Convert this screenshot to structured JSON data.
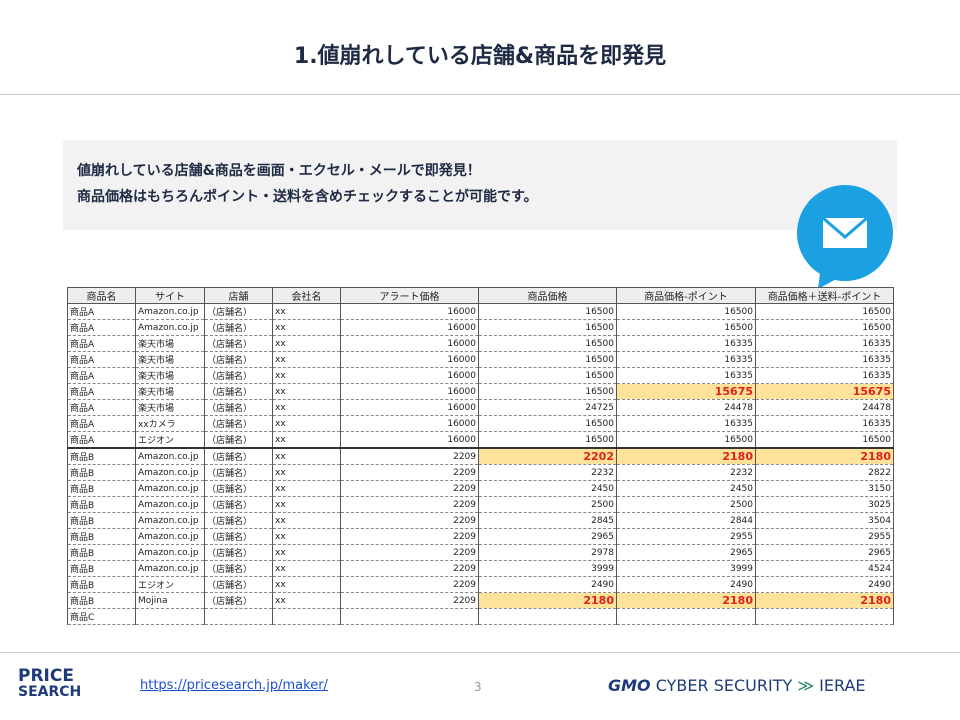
{
  "header": {
    "title": "1.値崩れしている店舗&商品を即発見"
  },
  "callout": {
    "lines": [
      "値崩れしている店舗&商品を画面・エクセル・メールで即発見！",
      "商品価格はもちろんポイント・送料を含めチェックすることが可能です。"
    ]
  },
  "table": {
    "columns": [
      "商品名",
      "サイト",
      "店舗",
      "会社名",
      "アラート価格",
      "商品価格",
      "商品価格-ポイント",
      "商品価格＋送料-ポイント"
    ],
    "rows": [
      [
        "商品A",
        "Amazon.co.jp",
        "（店舗名）",
        "xx",
        16000,
        16500,
        16500,
        16500
      ],
      [
        "商品A",
        "Amazon.co.jp",
        "（店舗名）",
        "xx",
        16000,
        16500,
        16500,
        16500
      ],
      [
        "商品A",
        "楽天市場",
        "（店舗名）",
        "xx",
        16000,
        16500,
        16335,
        16335
      ],
      [
        "商品A",
        "楽天市場",
        "（店舗名）",
        "xx",
        16000,
        16500,
        16335,
        16335
      ],
      [
        "商品A",
        "楽天市場",
        "（店舗名）",
        "xx",
        16000,
        16500,
        16335,
        16335
      ],
      [
        "商品A",
        "楽天市場",
        "（店舗名）",
        "xx",
        16000,
        16500,
        15675,
        15675
      ],
      [
        "商品A",
        "楽天市場",
        "（店舗名）",
        "xx",
        16000,
        24725,
        24478,
        24478
      ],
      [
        "商品A",
        "xxカメラ",
        "（店舗名）",
        "xx",
        16000,
        16500,
        16335,
        16335
      ],
      [
        "商品A",
        "エジオン",
        "（店舗名）",
        "xx",
        16000,
        16500,
        16500,
        16500
      ],
      [
        "商品B",
        "Amazon.co.jp",
        "（店舗名）",
        "xx",
        2209,
        2202,
        2180,
        2180
      ],
      [
        "商品B",
        "Amazon.co.jp",
        "（店舗名）",
        "xx",
        2209,
        2232,
        2232,
        2822
      ],
      [
        "商品B",
        "Amazon.co.jp",
        "（店舗名）",
        "xx",
        2209,
        2450,
        2450,
        3150
      ],
      [
        "商品B",
        "Amazon.co.jp",
        "（店舗名）",
        "xx",
        2209,
        2500,
        2500,
        3025
      ],
      [
        "商品B",
        "Amazon.co.jp",
        "（店舗名）",
        "xx",
        2209,
        2845,
        2844,
        3504
      ],
      [
        "商品B",
        "Amazon.co.jp",
        "（店舗名）",
        "xx",
        2209,
        2965,
        2955,
        2955
      ],
      [
        "商品B",
        "Amazon.co.jp",
        "（店舗名）",
        "xx",
        2209,
        2978,
        2965,
        2965
      ],
      [
        "商品B",
        "Amazon.co.jp",
        "（店舗名）",
        "xx",
        2209,
        3999,
        3999,
        4524
      ],
      [
        "商品B",
        "エジオン",
        "（店舗名）",
        "xx",
        2209,
        2490,
        2490,
        2490
      ],
      [
        "商品B",
        "Mojina",
        "（店舗名）",
        "xx",
        2209,
        2180,
        2180,
        2180
      ],
      [
        "商品C"
      ]
    ],
    "highlights": [
      [
        5,
        6
      ],
      [
        5,
        7
      ],
      [
        9,
        5
      ],
      [
        9,
        6
      ],
      [
        9,
        7
      ],
      [
        18,
        5
      ],
      [
        18,
        6
      ],
      [
        18,
        7
      ]
    ],
    "highlight_color": "#ffe29a",
    "highlight_text_color": "#e0201b"
  },
  "footer": {
    "url": "https://pricesearch.jp/maker/",
    "page": "3",
    "logo_left": [
      "PRICE",
      "SEARCH"
    ],
    "logo_right": [
      "GMO",
      "CYBER SECURITY",
      "IERAE"
    ]
  }
}
